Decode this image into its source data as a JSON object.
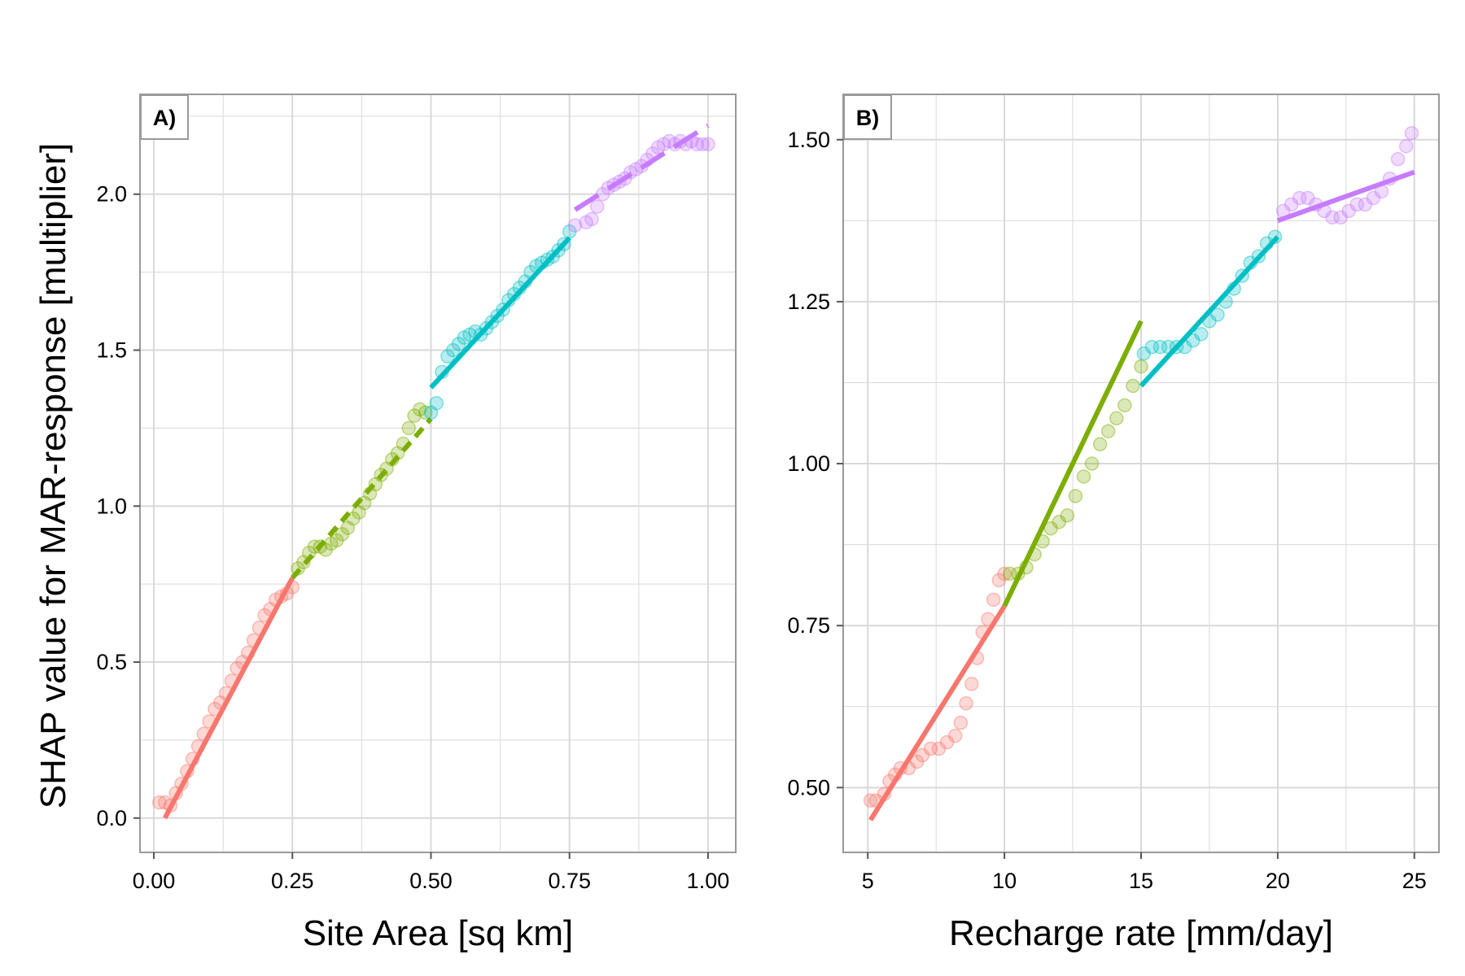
{
  "shared_ylabel": "SHAP value for MAR-response [multiplier]",
  "colors": {
    "seg1": "#F8766D",
    "seg2": "#7CAE00",
    "seg3": "#00BFC4",
    "seg4": "#C77CFF",
    "grid": "#d9d9d9",
    "frame": "#999999"
  },
  "chart_data": [
    {
      "type": "scatter",
      "tag": "A)",
      "xlabel": "Site Area [sq km]",
      "xlim": [
        -0.025,
        1.05
      ],
      "ylim": [
        -0.11,
        2.32
      ],
      "xticks": [
        0.0,
        0.25,
        0.5,
        0.75,
        1.0
      ],
      "xtick_labels": [
        "0.00",
        "0.25",
        "0.50",
        "0.75",
        "1.00"
      ],
      "yticks": [
        0.0,
        0.5,
        1.0,
        1.5,
        2.0
      ],
      "ytick_labels": [
        "0.0",
        "0.5",
        "1.0",
        "1.5",
        "2.0"
      ],
      "grid": true,
      "segments": [
        {
          "color_key": "seg1",
          "dash": "",
          "fit": [
            [
              0.02,
              0.0
            ],
            [
              0.25,
              0.77
            ]
          ],
          "points": [
            [
              0.01,
              0.05
            ],
            [
              0.02,
              0.05
            ],
            [
              0.03,
              0.04
            ],
            [
              0.04,
              0.08
            ],
            [
              0.05,
              0.11
            ],
            [
              0.06,
              0.15
            ],
            [
              0.07,
              0.19
            ],
            [
              0.08,
              0.23
            ],
            [
              0.09,
              0.27
            ],
            [
              0.1,
              0.31
            ],
            [
              0.11,
              0.35
            ],
            [
              0.12,
              0.37
            ],
            [
              0.13,
              0.4
            ],
            [
              0.14,
              0.44
            ],
            [
              0.15,
              0.48
            ],
            [
              0.16,
              0.5
            ],
            [
              0.17,
              0.53
            ],
            [
              0.18,
              0.57
            ],
            [
              0.19,
              0.61
            ],
            [
              0.2,
              0.65
            ],
            [
              0.21,
              0.67
            ],
            [
              0.22,
              0.7
            ],
            [
              0.23,
              0.71
            ],
            [
              0.24,
              0.72
            ],
            [
              0.25,
              0.74
            ]
          ]
        },
        {
          "color_key": "seg2",
          "dash": "14 9",
          "fit": [
            [
              0.25,
              0.77
            ],
            [
              0.5,
              1.28
            ]
          ],
          "points": [
            [
              0.26,
              0.8
            ],
            [
              0.27,
              0.82
            ],
            [
              0.28,
              0.85
            ],
            [
              0.29,
              0.87
            ],
            [
              0.3,
              0.87
            ],
            [
              0.31,
              0.86
            ],
            [
              0.32,
              0.88
            ],
            [
              0.33,
              0.89
            ],
            [
              0.34,
              0.91
            ],
            [
              0.35,
              0.93
            ],
            [
              0.36,
              0.96
            ],
            [
              0.37,
              0.98
            ],
            [
              0.38,
              1.01
            ],
            [
              0.39,
              1.04
            ],
            [
              0.4,
              1.07
            ],
            [
              0.41,
              1.1
            ],
            [
              0.42,
              1.12
            ],
            [
              0.43,
              1.15
            ],
            [
              0.44,
              1.17
            ],
            [
              0.45,
              1.2
            ],
            [
              0.46,
              1.25
            ],
            [
              0.47,
              1.29
            ],
            [
              0.48,
              1.31
            ],
            [
              0.49,
              1.3
            ]
          ]
        },
        {
          "color_key": "seg3",
          "dash": "",
          "fit": [
            [
              0.5,
              1.38
            ],
            [
              0.75,
              1.86
            ]
          ],
          "points": [
            [
              0.5,
              1.3
            ],
            [
              0.51,
              1.33
            ],
            [
              0.52,
              1.43
            ],
            [
              0.53,
              1.48
            ],
            [
              0.54,
              1.5
            ],
            [
              0.55,
              1.52
            ],
            [
              0.56,
              1.54
            ],
            [
              0.57,
              1.55
            ],
            [
              0.58,
              1.56
            ],
            [
              0.59,
              1.55
            ],
            [
              0.6,
              1.57
            ],
            [
              0.61,
              1.59
            ],
            [
              0.62,
              1.61
            ],
            [
              0.63,
              1.63
            ],
            [
              0.64,
              1.66
            ],
            [
              0.65,
              1.68
            ],
            [
              0.66,
              1.7
            ],
            [
              0.67,
              1.72
            ],
            [
              0.68,
              1.75
            ],
            [
              0.69,
              1.77
            ],
            [
              0.7,
              1.78
            ],
            [
              0.71,
              1.79
            ],
            [
              0.72,
              1.8
            ],
            [
              0.73,
              1.82
            ],
            [
              0.74,
              1.84
            ],
            [
              0.75,
              1.88
            ]
          ]
        },
        {
          "color_key": "seg4",
          "dash": "34 14",
          "fit": [
            [
              0.76,
              1.95
            ],
            [
              1.0,
              2.22
            ]
          ],
          "points": [
            [
              0.76,
              1.9
            ],
            [
              0.78,
              1.91
            ],
            [
              0.79,
              1.92
            ],
            [
              0.8,
              1.96
            ],
            [
              0.81,
              2.0
            ],
            [
              0.82,
              2.02
            ],
            [
              0.83,
              2.03
            ],
            [
              0.84,
              2.04
            ],
            [
              0.85,
              2.05
            ],
            [
              0.86,
              2.07
            ],
            [
              0.87,
              2.08
            ],
            [
              0.88,
              2.09
            ],
            [
              0.89,
              2.11
            ],
            [
              0.9,
              2.13
            ],
            [
              0.91,
              2.15
            ],
            [
              0.92,
              2.16
            ],
            [
              0.93,
              2.17
            ],
            [
              0.94,
              2.16
            ],
            [
              0.95,
              2.17
            ],
            [
              0.96,
              2.16
            ],
            [
              0.97,
              2.17
            ],
            [
              0.98,
              2.16
            ],
            [
              0.99,
              2.16
            ],
            [
              1.0,
              2.16
            ]
          ]
        }
      ]
    },
    {
      "type": "scatter",
      "tag": "B)",
      "xlabel": "Recharge rate [mm/day]",
      "xlim": [
        4.1,
        25.9
      ],
      "ylim": [
        0.4,
        1.57
      ],
      "xticks": [
        5,
        10,
        15,
        20,
        25
      ],
      "xtick_labels": [
        "5",
        "10",
        "15",
        "20",
        "25"
      ],
      "yticks": [
        0.5,
        0.75,
        1.0,
        1.25,
        1.5
      ],
      "ytick_labels": [
        "0.50",
        "0.75",
        "1.00",
        "1.25",
        "1.50"
      ],
      "grid": true,
      "segments": [
        {
          "color_key": "seg1",
          "dash": "",
          "fit": [
            [
              5.1,
              0.45
            ],
            [
              10.0,
              0.78
            ]
          ],
          "points": [
            [
              5.1,
              0.48
            ],
            [
              5.3,
              0.48
            ],
            [
              5.6,
              0.49
            ],
            [
              5.8,
              0.51
            ],
            [
              6.0,
              0.52
            ],
            [
              6.2,
              0.53
            ],
            [
              6.5,
              0.53
            ],
            [
              6.8,
              0.54
            ],
            [
              7.0,
              0.55
            ],
            [
              7.3,
              0.56
            ],
            [
              7.6,
              0.56
            ],
            [
              7.9,
              0.57
            ],
            [
              8.2,
              0.58
            ],
            [
              8.4,
              0.6
            ],
            [
              8.6,
              0.63
            ],
            [
              8.8,
              0.66
            ],
            [
              9.0,
              0.7
            ],
            [
              9.2,
              0.74
            ],
            [
              9.4,
              0.76
            ],
            [
              9.6,
              0.79
            ],
            [
              9.8,
              0.82
            ],
            [
              10.0,
              0.83
            ]
          ]
        },
        {
          "color_key": "seg2",
          "dash": "",
          "fit": [
            [
              10.0,
              0.78
            ],
            [
              15.0,
              1.22
            ]
          ],
          "points": [
            [
              10.2,
              0.83
            ],
            [
              10.5,
              0.83
            ],
            [
              10.8,
              0.84
            ],
            [
              11.1,
              0.86
            ],
            [
              11.4,
              0.88
            ],
            [
              11.7,
              0.9
            ],
            [
              12.0,
              0.91
            ],
            [
              12.3,
              0.92
            ],
            [
              12.6,
              0.95
            ],
            [
              12.9,
              0.98
            ],
            [
              13.2,
              1.0
            ],
            [
              13.5,
              1.03
            ],
            [
              13.8,
              1.05
            ],
            [
              14.1,
              1.07
            ],
            [
              14.4,
              1.09
            ],
            [
              14.7,
              1.12
            ],
            [
              15.0,
              1.15
            ]
          ]
        },
        {
          "color_key": "seg3",
          "dash": "",
          "fit": [
            [
              15.0,
              1.12
            ],
            [
              20.0,
              1.35
            ]
          ],
          "points": [
            [
              15.1,
              1.17
            ],
            [
              15.4,
              1.18
            ],
            [
              15.7,
              1.18
            ],
            [
              16.0,
              1.18
            ],
            [
              16.3,
              1.18
            ],
            [
              16.6,
              1.18
            ],
            [
              16.9,
              1.19
            ],
            [
              17.2,
              1.2
            ],
            [
              17.5,
              1.22
            ],
            [
              17.8,
              1.23
            ],
            [
              18.1,
              1.25
            ],
            [
              18.4,
              1.27
            ],
            [
              18.7,
              1.29
            ],
            [
              19.0,
              1.31
            ],
            [
              19.3,
              1.32
            ],
            [
              19.6,
              1.34
            ],
            [
              19.9,
              1.35
            ]
          ]
        },
        {
          "color_key": "seg4",
          "dash": "",
          "fit": [
            [
              20.0,
              1.375
            ],
            [
              25.0,
              1.45
            ]
          ],
          "points": [
            [
              20.2,
              1.39
            ],
            [
              20.5,
              1.4
            ],
            [
              20.8,
              1.41
            ],
            [
              21.1,
              1.41
            ],
            [
              21.4,
              1.4
            ],
            [
              21.7,
              1.39
            ],
            [
              22.0,
              1.38
            ],
            [
              22.3,
              1.38
            ],
            [
              22.6,
              1.39
            ],
            [
              22.9,
              1.4
            ],
            [
              23.2,
              1.4
            ],
            [
              23.5,
              1.41
            ],
            [
              23.8,
              1.42
            ],
            [
              24.1,
              1.44
            ],
            [
              24.4,
              1.47
            ],
            [
              24.7,
              1.49
            ],
            [
              24.9,
              1.51
            ]
          ]
        }
      ]
    }
  ]
}
